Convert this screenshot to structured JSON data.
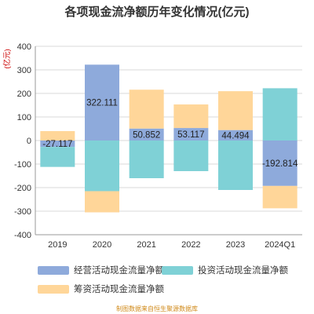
{
  "chart_data": {
    "type": "bar",
    "stacked": true,
    "title": "各项现金流净额历年变化情况(亿元)",
    "ylabel": "(亿元)",
    "ylim": [
      -400,
      400
    ],
    "yticks": [
      -400,
      -300,
      -200,
      -100,
      0,
      100,
      200,
      300,
      400
    ],
    "grid": true,
    "categories": [
      "2019",
      "2020",
      "2021",
      "2022",
      "2023",
      "2024Q1"
    ],
    "series": [
      {
        "name": "经营活动现金流量净额",
        "color": "#8eaadb",
        "values": [
          -27.117,
          322.111,
          50.852,
          53.117,
          44.494,
          -192.814
        ]
      },
      {
        "name": "投资活动现金流量净额",
        "color": "#7fd1d6",
        "values": [
          -85,
          -215,
          -160,
          -130,
          -210,
          222
        ]
      },
      {
        "name": "筹资活动现金流量净额",
        "color": "#ffd699",
        "values": [
          40,
          -90,
          165,
          100,
          165,
          -95
        ]
      }
    ],
    "data_labels": [
      "-27.117",
      "322.111",
      "50.852",
      "53.117",
      "44.494",
      "-192.814"
    ],
    "legend_position": "bottom"
  },
  "footer": "制图数据来自恒生聚源数据库"
}
